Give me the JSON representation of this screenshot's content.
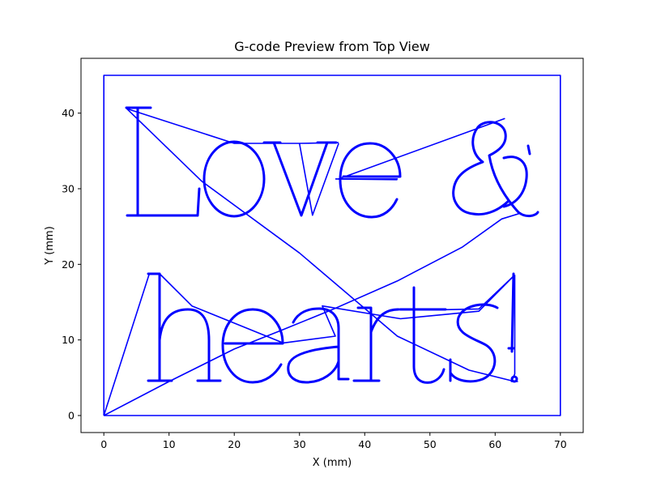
{
  "chart_data": {
    "type": "line",
    "title": "G-code Preview from Top View",
    "xlabel": "X (mm)",
    "ylabel": "Y (mm)",
    "xlim": [
      -3.5,
      73.5
    ],
    "ylim": [
      -2.25,
      47.25
    ],
    "xticks": [
      0,
      10,
      20,
      30,
      40,
      50,
      60,
      70
    ],
    "yticks": [
      0,
      10,
      20,
      30,
      40
    ],
    "grid": false,
    "line_color": "#0000ff",
    "text_rendered": "Love & hearts!",
    "series": [
      {
        "segments": [
          [
            [
              0,
              0
            ],
            [
              0,
              45
            ],
            [
              70,
              45
            ],
            [
              70,
              0
            ],
            [
              0,
              0
            ]
          ],
          [
            [
              0,
              0
            ],
            [
              10,
              4.5
            ],
            [
              20,
              8.8
            ],
            [
              27,
              11.2
            ],
            [
              35,
              14
            ],
            [
              45,
              17.8
            ],
            [
              55,
              22.3
            ],
            [
              61,
              26
            ],
            [
              64,
              26.8
            ]
          ],
          [
            [
              0,
              0
            ],
            [
              7,
              18.8
            ],
            [
              8.5,
              18.8
            ],
            [
              13.5,
              14.5
            ],
            [
              27.5,
              9.6
            ]
          ],
          [
            [
              3.5,
              40.6
            ],
            [
              20,
              36
            ],
            [
              26,
              36
            ],
            [
              30,
              36
            ],
            [
              36,
              36.1
            ]
          ],
          [
            [
              3.5,
              40.6
            ],
            [
              15,
              31
            ],
            [
              30,
              21.5
            ],
            [
              45,
              10.5
            ],
            [
              56,
              6
            ],
            [
              63,
              4.5
            ]
          ],
          [
            [
              36,
              31.3
            ],
            [
              45,
              31.3
            ],
            [
              36,
              31.3
            ],
            [
              61.5,
              39.3
            ]
          ],
          [
            [
              35.5,
              31.3
            ],
            [
              45,
              31.2
            ]
          ],
          [
            [
              30,
              36
            ],
            [
              32,
              26.5
            ],
            [
              36,
              36
            ]
          ],
          [
            [
              27.5,
              9.6
            ],
            [
              35.5,
              10.5
            ],
            [
              33.5,
              14.5
            ],
            [
              45.5,
              12.8
            ],
            [
              57.5,
              13.8
            ],
            [
              63,
              18.6
            ]
          ],
          [
            [
              52.5,
              14
            ],
            [
              57.5,
              14.1
            ],
            [
              63,
              18.6
            ]
          ],
          [
            [
              63,
              18.6
            ],
            [
              63,
              5.5
            ],
            [
              62.5,
              4.5
            ],
            [
              63.5,
              4.5
            ]
          ]
        ]
      }
    ]
  }
}
